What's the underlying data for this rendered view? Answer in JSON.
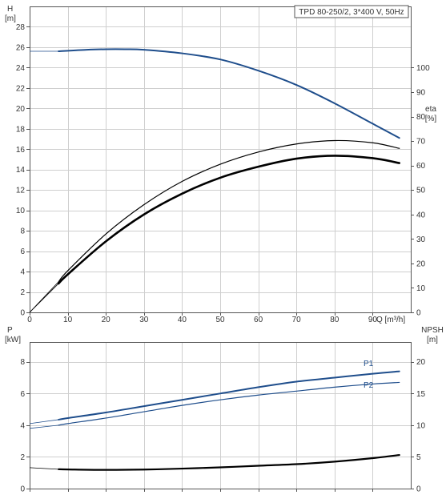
{
  "title": "TPD 80-250/2, 3*400 V, 50Hz",
  "colors": {
    "blue": "#1f4e8c",
    "black": "#000000"
  },
  "chart_data": [
    {
      "type": "line",
      "x_label": "Q [m³/h]",
      "x_ticks": [
        0,
        10,
        20,
        30,
        40,
        50,
        60,
        70,
        80,
        90
      ],
      "xlim": [
        0,
        100
      ],
      "left_axis": {
        "label_top": "H",
        "label_bottom": "[m]",
        "ticks": [
          0,
          2,
          4,
          6,
          8,
          10,
          12,
          14,
          16,
          18,
          20,
          22,
          24,
          26,
          28
        ],
        "ylim": [
          0,
          30
        ]
      },
      "right_axis": {
        "label_top": "eta",
        "label_bottom": "[%]",
        "ticks": [
          0,
          10,
          20,
          30,
          40,
          50,
          60,
          70,
          80,
          90,
          100
        ],
        "ylim": [
          0,
          125
        ]
      },
      "grid": true,
      "series": [
        {
          "axis": "left",
          "color": "blue",
          "width": 2,
          "x": [
            7.6,
            15,
            20,
            25,
            30,
            40,
            50,
            60,
            70,
            80,
            90,
            97
          ],
          "y": [
            25.6,
            25.75,
            25.8,
            25.8,
            25.75,
            25.4,
            24.8,
            23.7,
            22.3,
            20.5,
            18.5,
            17.1
          ],
          "lead_in": {
            "x": [
              0,
              7.6
            ],
            "y": [
              25.6,
              25.6
            ]
          }
        },
        {
          "axis": "right",
          "color": "black",
          "width": 1.2,
          "x": [
            7.6,
            10,
            20,
            30,
            40,
            50,
            60,
            70,
            80,
            90,
            97
          ],
          "y": [
            12.5,
            17,
            32,
            44,
            53.5,
            60.5,
            65.5,
            68.8,
            70.2,
            69.3,
            67
          ],
          "lead_in": {
            "x": [
              0,
              7.6
            ],
            "y": [
              0,
              12.5
            ]
          }
        },
        {
          "axis": "right",
          "color": "black",
          "width": 2.6,
          "x": [
            7.6,
            10,
            20,
            30,
            40,
            50,
            60,
            70,
            80,
            90,
            97
          ],
          "y": [
            11.8,
            15.5,
            29,
            40,
            48.5,
            55,
            59.5,
            62.8,
            64,
            63,
            61
          ],
          "lead_in": {
            "x": [
              0,
              7.6
            ],
            "y": [
              0,
              11.8
            ]
          }
        }
      ]
    },
    {
      "type": "line",
      "x_ticks": [
        0,
        10,
        20,
        30,
        40,
        50,
        60,
        70,
        80,
        90
      ],
      "xlim": [
        0,
        100
      ],
      "left_axis": {
        "label_top": "P",
        "label_bottom": "[kW]",
        "ticks": [
          0,
          2,
          4,
          6,
          8
        ],
        "ylim": [
          0,
          9.25
        ]
      },
      "right_axis": {
        "label_top": "NPSH",
        "label_bottom": "[m]",
        "ticks": [
          0,
          5,
          10,
          15,
          20
        ],
        "ylim": [
          0,
          23.125
        ]
      },
      "grid": true,
      "series": [
        {
          "name": "P1",
          "axis": "left",
          "color": "blue",
          "width": 2,
          "x": [
            7.6,
            10,
            20,
            30,
            40,
            50,
            60,
            70,
            80,
            90,
            97
          ],
          "y": [
            4.35,
            4.45,
            4.8,
            5.2,
            5.6,
            6.0,
            6.4,
            6.75,
            7.0,
            7.25,
            7.4
          ],
          "lead_in": {
            "x": [
              0,
              7.6
            ],
            "y": [
              4.1,
              4.35
            ]
          }
        },
        {
          "name": "P2",
          "axis": "left",
          "color": "blue",
          "width": 1.2,
          "x": [
            7.6,
            10,
            20,
            30,
            40,
            50,
            60,
            70,
            80,
            90,
            97
          ],
          "y": [
            4.0,
            4.1,
            4.45,
            4.85,
            5.25,
            5.6,
            5.9,
            6.15,
            6.4,
            6.6,
            6.7
          ],
          "lead_in": {
            "x": [
              0,
              7.6
            ],
            "y": [
              3.8,
              4.0
            ]
          }
        },
        {
          "axis": "right",
          "color": "black",
          "width": 2.2,
          "x": [
            7.6,
            10,
            20,
            30,
            40,
            50,
            60,
            70,
            80,
            90,
            97
          ],
          "y": [
            3.05,
            3.02,
            2.95,
            3.0,
            3.15,
            3.35,
            3.6,
            3.85,
            4.25,
            4.8,
            5.3
          ],
          "lead_in": {
            "x": [
              0,
              7.6
            ],
            "y": [
              3.3,
              3.05
            ]
          }
        }
      ]
    }
  ]
}
